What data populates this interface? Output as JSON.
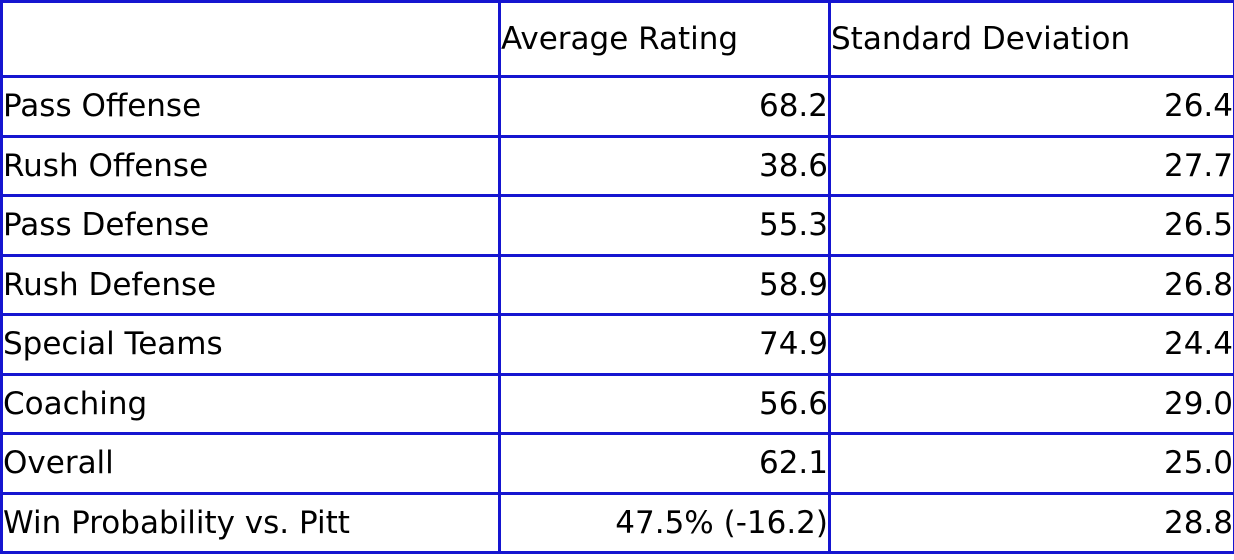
{
  "colors": {
    "border": "#1515d0",
    "text": "#000000",
    "background": "#ffffff"
  },
  "chart_data": {
    "type": "table",
    "title": "",
    "columns": [
      "",
      "Average Rating",
      "Standard Deviation"
    ],
    "rows": [
      [
        "Pass Offense",
        "68.2",
        "26.4"
      ],
      [
        "Rush Offense",
        "38.6",
        "27.7"
      ],
      [
        "Pass Defense",
        "55.3",
        "26.5"
      ],
      [
        "Rush Defense",
        "58.9",
        "26.8"
      ],
      [
        "Special Teams",
        "74.9",
        "24.4"
      ],
      [
        "Coaching",
        "56.6",
        "29.0"
      ],
      [
        "Overall",
        "62.1",
        "25.0"
      ],
      [
        "Win Probability vs. Pitt",
        "47.5% (-16.2)",
        "28.8"
      ]
    ],
    "notes": {
      "average_rating_numeric": [
        68.2,
        38.6,
        55.3,
        58.9,
        74.9,
        56.6,
        62.1
      ],
      "standard_deviation_numeric": [
        26.4,
        27.7,
        26.5,
        26.8,
        24.4,
        29.0,
        25.0,
        28.8
      ],
      "win_probability_vs_pitt": "47.5%",
      "win_probability_delta": "-16.2"
    }
  }
}
